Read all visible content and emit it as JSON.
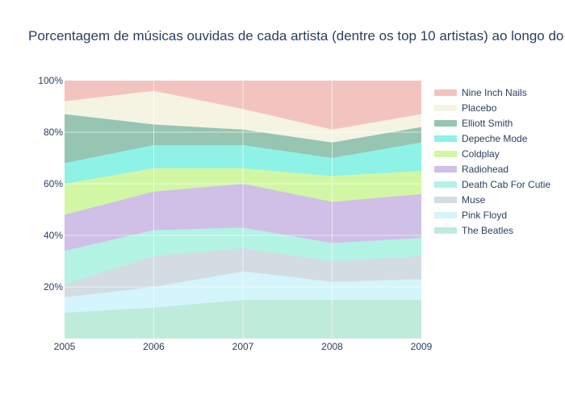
{
  "chart_data": {
    "type": "area",
    "stacked": true,
    "normalized": "percent",
    "title": "Porcentagem de músicas ouvidas de cada artista (dentre os top 10 artistas) ao longo do",
    "xlabel": "",
    "ylabel": "",
    "x": [
      "2005",
      "2006",
      "2007",
      "2008",
      "2009"
    ],
    "ylim": [
      0,
      100
    ],
    "y_ticks": [
      "20%",
      "40%",
      "60%",
      "80%",
      "100%"
    ],
    "grid": true,
    "legend_position": "right",
    "series": [
      {
        "name": "The Beatles",
        "color": "#7fd8b8",
        "values": [
          10,
          12,
          15,
          15,
          15
        ]
      },
      {
        "name": "Pink Floyd",
        "color": "#a8ecf7",
        "values": [
          6,
          8,
          11,
          7,
          8
        ]
      },
      {
        "name": "Muse",
        "color": "#a8b8c8",
        "values": [
          5,
          12,
          9,
          8,
          9
        ]
      },
      {
        "name": "Death Cab For Cutie",
        "color": "#66e8c8",
        "values": [
          13,
          10,
          8,
          7,
          7
        ]
      },
      {
        "name": "Radiohead",
        "color": "#a27fd0",
        "values": [
          14,
          15,
          17,
          16,
          17
        ]
      },
      {
        "name": "Coldplay",
        "color": "#a3ef4a",
        "values": [
          12,
          9,
          6,
          10,
          9
        ]
      },
      {
        "name": "Depeche Mode",
        "color": "#1de6cf",
        "values": [
          8,
          9,
          9,
          7,
          11
        ]
      },
      {
        "name": "Elliott Smith",
        "color": "#2e8b64",
        "values": [
          19,
          8,
          6,
          6,
          6
        ]
      },
      {
        "name": "Placebo",
        "color": "#ece9c8",
        "values": [
          5,
          13,
          8,
          5,
          5
        ]
      },
      {
        "name": "Nine Inch Nails",
        "color": "#e88a80",
        "values": [
          8,
          4,
          11,
          19,
          13
        ]
      }
    ]
  }
}
